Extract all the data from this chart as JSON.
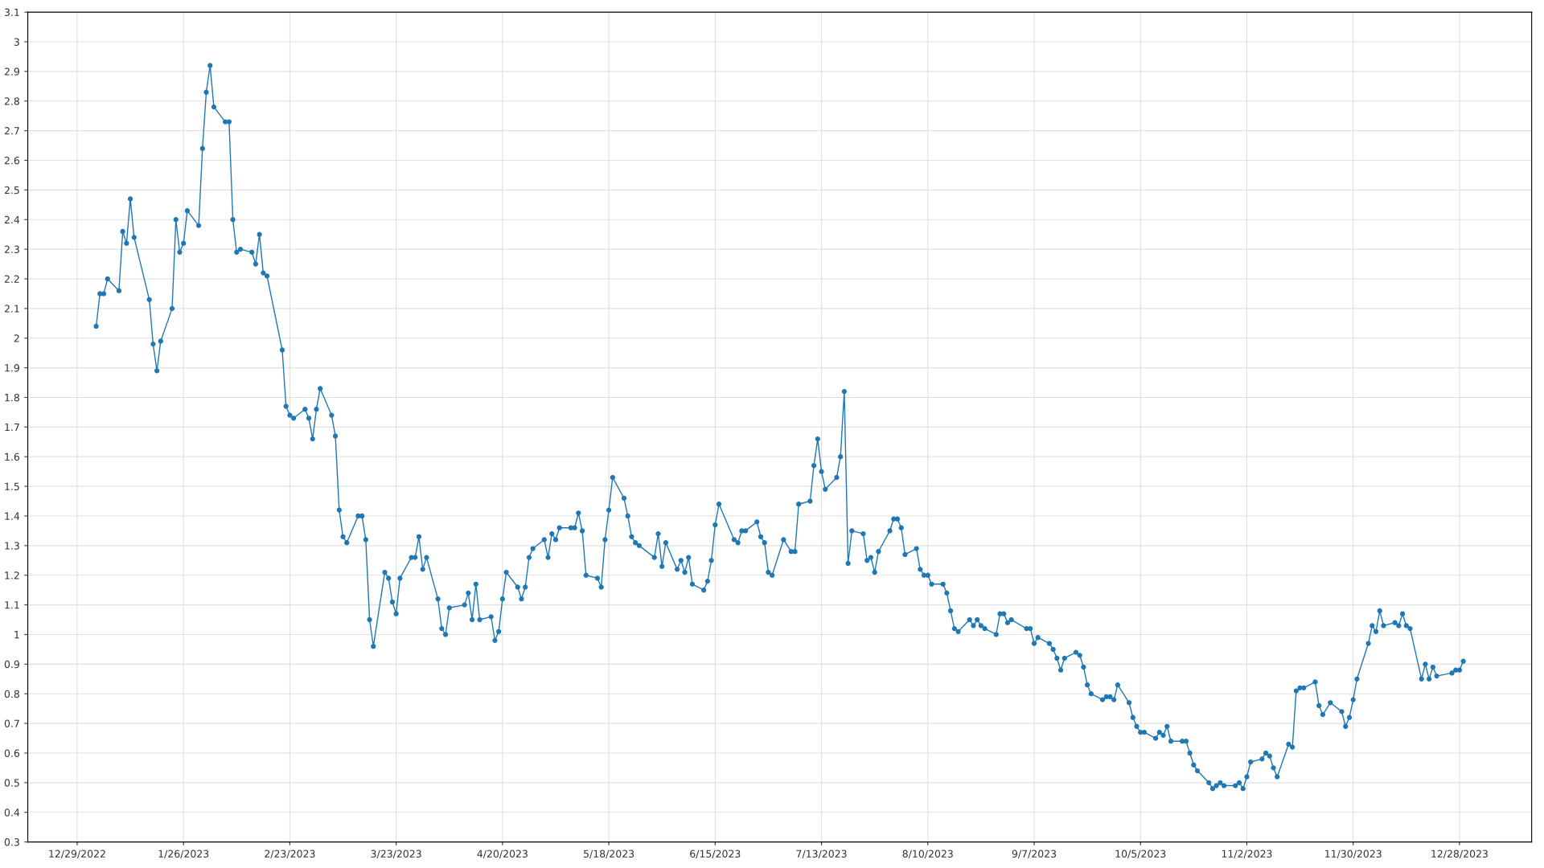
{
  "chart_data": {
    "type": "line",
    "marker": "circle",
    "line_style": "solid",
    "grid": true,
    "xlim": [
      "2022-12-16",
      "2024-01-16"
    ],
    "xticks": [
      {
        "value": "2022-12-29",
        "label": "12/29/2022"
      },
      {
        "value": "2023-01-26",
        "label": "1/26/2023"
      },
      {
        "value": "2023-02-23",
        "label": "2/23/2023"
      },
      {
        "value": "2023-03-23",
        "label": "3/23/2023"
      },
      {
        "value": "2023-04-20",
        "label": "4/20/2023"
      },
      {
        "value": "2023-05-18",
        "label": "5/18/2023"
      },
      {
        "value": "2023-06-15",
        "label": "6/15/2023"
      },
      {
        "value": "2023-07-13",
        "label": "7/13/2023"
      },
      {
        "value": "2023-08-10",
        "label": "8/10/2023"
      },
      {
        "value": "2023-09-07",
        "label": "9/7/2023"
      },
      {
        "value": "2023-10-05",
        "label": "10/5/2023"
      },
      {
        "value": "2023-11-02",
        "label": "11/2/2023"
      },
      {
        "value": "2023-11-30",
        "label": "11/30/2023"
      },
      {
        "value": "2023-12-28",
        "label": "12/28/2023"
      }
    ],
    "ylim": [
      0.3,
      3.1
    ],
    "yticks": [
      0.3,
      0.4,
      0.5,
      0.6,
      0.7,
      0.8,
      0.9,
      1,
      1.1,
      1.2,
      1.3,
      1.4,
      1.5,
      1.6,
      1.7,
      1.8,
      1.9,
      2,
      2.1,
      2.2,
      2.3,
      2.4,
      2.5,
      2.6,
      2.7,
      2.8,
      2.9,
      3,
      3.1
    ],
    "x": [
      "2023-01-03",
      "2023-01-04",
      "2023-01-05",
      "2023-01-06",
      "2023-01-09",
      "2023-01-10",
      "2023-01-11",
      "2023-01-12",
      "2023-01-13",
      "2023-01-17",
      "2023-01-18",
      "2023-01-19",
      "2023-01-20",
      "2023-01-23",
      "2023-01-24",
      "2023-01-25",
      "2023-01-26",
      "2023-01-27",
      "2023-01-30",
      "2023-01-31",
      "2023-02-01",
      "2023-02-02",
      "2023-02-03",
      "2023-02-06",
      "2023-02-07",
      "2023-02-08",
      "2023-02-09",
      "2023-02-10",
      "2023-02-13",
      "2023-02-14",
      "2023-02-15",
      "2023-02-16",
      "2023-02-17",
      "2023-02-21",
      "2023-02-22",
      "2023-02-23",
      "2023-02-24",
      "2023-02-27",
      "2023-02-28",
      "2023-03-01",
      "2023-03-02",
      "2023-03-03",
      "2023-03-06",
      "2023-03-07",
      "2023-03-08",
      "2023-03-09",
      "2023-03-10",
      "2023-03-13",
      "2023-03-14",
      "2023-03-15",
      "2023-03-16",
      "2023-03-17",
      "2023-03-20",
      "2023-03-21",
      "2023-03-22",
      "2023-03-23",
      "2023-03-24",
      "2023-03-27",
      "2023-03-28",
      "2023-03-29",
      "2023-03-30",
      "2023-03-31",
      "2023-04-03",
      "2023-04-04",
      "2023-04-05",
      "2023-04-06",
      "2023-04-10",
      "2023-04-11",
      "2023-04-12",
      "2023-04-13",
      "2023-04-14",
      "2023-04-17",
      "2023-04-18",
      "2023-04-19",
      "2023-04-20",
      "2023-04-21",
      "2023-04-24",
      "2023-04-25",
      "2023-04-26",
      "2023-04-27",
      "2023-04-28",
      "2023-05-01",
      "2023-05-02",
      "2023-05-03",
      "2023-05-04",
      "2023-05-05",
      "2023-05-08",
      "2023-05-09",
      "2023-05-10",
      "2023-05-11",
      "2023-05-12",
      "2023-05-15",
      "2023-05-16",
      "2023-05-17",
      "2023-05-18",
      "2023-05-19",
      "2023-05-22",
      "2023-05-23",
      "2023-05-24",
      "2023-05-25",
      "2023-05-26",
      "2023-05-30",
      "2023-05-31",
      "2023-06-01",
      "2023-06-02",
      "2023-06-05",
      "2023-06-06",
      "2023-06-07",
      "2023-06-08",
      "2023-06-09",
      "2023-06-12",
      "2023-06-13",
      "2023-06-14",
      "2023-06-15",
      "2023-06-16",
      "2023-06-20",
      "2023-06-21",
      "2023-06-22",
      "2023-06-23",
      "2023-06-26",
      "2023-06-27",
      "2023-06-28",
      "2023-06-29",
      "2023-06-30",
      "2023-07-03",
      "2023-07-05",
      "2023-07-06",
      "2023-07-07",
      "2023-07-10",
      "2023-07-11",
      "2023-07-12",
      "2023-07-13",
      "2023-07-14",
      "2023-07-17",
      "2023-07-18",
      "2023-07-19",
      "2023-07-20",
      "2023-07-21",
      "2023-07-24",
      "2023-07-25",
      "2023-07-26",
      "2023-07-27",
      "2023-07-28",
      "2023-07-31",
      "2023-08-01",
      "2023-08-02",
      "2023-08-03",
      "2023-08-04",
      "2023-08-07",
      "2023-08-08",
      "2023-08-09",
      "2023-08-10",
      "2023-08-11",
      "2023-08-14",
      "2023-08-15",
      "2023-08-16",
      "2023-08-17",
      "2023-08-18",
      "2023-08-21",
      "2023-08-22",
      "2023-08-23",
      "2023-08-24",
      "2023-08-25",
      "2023-08-28",
      "2023-08-29",
      "2023-08-30",
      "2023-08-31",
      "2023-09-01",
      "2023-09-05",
      "2023-09-06",
      "2023-09-07",
      "2023-09-08",
      "2023-09-11",
      "2023-09-12",
      "2023-09-13",
      "2023-09-14",
      "2023-09-15",
      "2023-09-18",
      "2023-09-19",
      "2023-09-20",
      "2023-09-21",
      "2023-09-22",
      "2023-09-25",
      "2023-09-26",
      "2023-09-27",
      "2023-09-28",
      "2023-09-29",
      "2023-10-02",
      "2023-10-03",
      "2023-10-04",
      "2023-10-05",
      "2023-10-06",
      "2023-10-09",
      "2023-10-10",
      "2023-10-11",
      "2023-10-12",
      "2023-10-13",
      "2023-10-16",
      "2023-10-17",
      "2023-10-18",
      "2023-10-19",
      "2023-10-20",
      "2023-10-23",
      "2023-10-24",
      "2023-10-25",
      "2023-10-26",
      "2023-10-27",
      "2023-10-30",
      "2023-10-31",
      "2023-11-01",
      "2023-11-02",
      "2023-11-03",
      "2023-11-06",
      "2023-11-07",
      "2023-11-08",
      "2023-11-09",
      "2023-11-10",
      "2023-11-13",
      "2023-11-14",
      "2023-11-15",
      "2023-11-16",
      "2023-11-17",
      "2023-11-20",
      "2023-11-21",
      "2023-11-22",
      "2023-11-24",
      "2023-11-27",
      "2023-11-28",
      "2023-11-29",
      "2023-11-30",
      "2023-12-01",
      "2023-12-04",
      "2023-12-05",
      "2023-12-06",
      "2023-12-07",
      "2023-12-08",
      "2023-12-11",
      "2023-12-12",
      "2023-12-13",
      "2023-12-14",
      "2023-12-15",
      "2023-12-18",
      "2023-12-19",
      "2023-12-20",
      "2023-12-21",
      "2023-12-22",
      "2023-12-26",
      "2023-12-27",
      "2023-12-28",
      "2023-12-29"
    ],
    "series": [
      {
        "color": "#1f78b4",
        "values": [
          2.04,
          2.15,
          2.15,
          2.2,
          2.16,
          2.36,
          2.32,
          2.47,
          2.34,
          2.13,
          1.98,
          1.89,
          1.99,
          2.1,
          2.4,
          2.29,
          2.32,
          2.43,
          2.38,
          2.64,
          2.83,
          2.92,
          2.78,
          2.73,
          2.73,
          2.4,
          2.29,
          2.3,
          2.29,
          2.25,
          2.35,
          2.22,
          2.21,
          1.96,
          1.77,
          1.74,
          1.73,
          1.76,
          1.73,
          1.66,
          1.76,
          1.83,
          1.74,
          1.67,
          1.42,
          1.33,
          1.31,
          1.4,
          1.4,
          1.32,
          1.05,
          0.96,
          1.21,
          1.19,
          1.11,
          1.07,
          1.19,
          1.26,
          1.26,
          1.33,
          1.22,
          1.26,
          1.12,
          1.02,
          1.0,
          1.09,
          1.1,
          1.14,
          1.05,
          1.17,
          1.05,
          1.06,
          0.98,
          1.01,
          1.12,
          1.21,
          1.16,
          1.12,
          1.16,
          1.26,
          1.29,
          1.32,
          1.26,
          1.34,
          1.32,
          1.36,
          1.36,
          1.36,
          1.41,
          1.35,
          1.2,
          1.19,
          1.16,
          1.32,
          1.42,
          1.53,
          1.46,
          1.4,
          1.33,
          1.31,
          1.3,
          1.26,
          1.34,
          1.23,
          1.31,
          1.22,
          1.25,
          1.21,
          1.26,
          1.17,
          1.15,
          1.18,
          1.25,
          1.37,
          1.44,
          1.32,
          1.31,
          1.35,
          1.35,
          1.38,
          1.33,
          1.31,
          1.21,
          1.2,
          1.32,
          1.28,
          1.28,
          1.44,
          1.45,
          1.57,
          1.66,
          1.55,
          1.49,
          1.53,
          1.6,
          1.82,
          1.24,
          1.35,
          1.34,
          1.25,
          1.26,
          1.21,
          1.28,
          1.35,
          1.39,
          1.39,
          1.36,
          1.27,
          1.29,
          1.22,
          1.2,
          1.2,
          1.17,
          1.17,
          1.14,
          1.08,
          1.02,
          1.01,
          1.05,
          1.03,
          1.05,
          1.03,
          1.02,
          1.0,
          1.07,
          1.07,
          1.04,
          1.05,
          1.02,
          1.02,
          0.97,
          0.99,
          0.97,
          0.95,
          0.92,
          0.88,
          0.92,
          0.94,
          0.93,
          0.89,
          0.83,
          0.8,
          0.78,
          0.79,
          0.79,
          0.78,
          0.83,
          0.77,
          0.72,
          0.69,
          0.67,
          0.67,
          0.65,
          0.67,
          0.66,
          0.69,
          0.64,
          0.64,
          0.64,
          0.6,
          0.56,
          0.54,
          0.5,
          0.48,
          0.49,
          0.5,
          0.49,
          0.49,
          0.5,
          0.48,
          0.52,
          0.57,
          0.58,
          0.6,
          0.59,
          0.55,
          0.52,
          0.63,
          0.62,
          0.81,
          0.82,
          0.82,
          0.84,
          0.76,
          0.73,
          0.77,
          0.74,
          0.69,
          0.72,
          0.78,
          0.85,
          0.97,
          1.03,
          1.01,
          1.08,
          1.03,
          1.04,
          1.03,
          1.07,
          1.03,
          1.02,
          0.85,
          0.9,
          0.85,
          0.89,
          0.86,
          0.87,
          0.88,
          0.88,
          0.91
        ]
      }
    ]
  }
}
